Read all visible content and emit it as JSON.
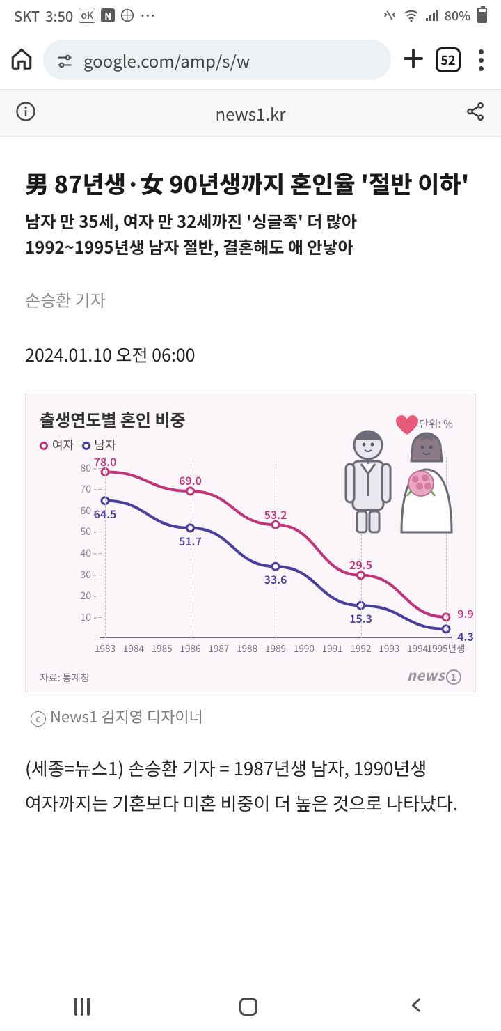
{
  "status_bar": {
    "carrier": "SKT",
    "time": "3:50",
    "ok_badge": "oK",
    "battery_text": "80%"
  },
  "chrome": {
    "url_display": "google.com/amp/s/w",
    "tab_count": "52"
  },
  "amp": {
    "site": "news1.kr"
  },
  "article": {
    "headline": "男 87년생·女 90년생까지 혼인율 '절반 이하'",
    "subhead": "남자 만 35세, 여자 만 32세까진 '싱글족' 더 많아\n1992~1995년생 남자 절반, 결혼해도 애 안낳아",
    "byline": "손승환 기자",
    "pubdate": "2024.01.10 오전 06:00",
    "caption": "News1 김지영 디자이너",
    "body": "(세종=뉴스1) 손승환 기자 = 1987년생 남자, 1990년생 여자까지는 기혼보다 미혼 비중이 더 높은 것으로 나타났다."
  },
  "chart": {
    "type": "line",
    "title": "출생연도별 혼인 비중",
    "unit_label": "단위: %",
    "legend": {
      "female": "여자",
      "male": "남자"
    },
    "colors": {
      "female": "#c2357a",
      "male": "#4a3f9e",
      "background": "#faf6f9",
      "grid": "#c1bcc6",
      "axis": "#6a6472",
      "tick_text": "#8a8490"
    },
    "y": {
      "min": 0,
      "max": 85,
      "ticks": [
        10,
        20,
        30,
        40,
        50,
        60,
        70,
        80
      ]
    },
    "x_labels": [
      "1983",
      "1984",
      "1985",
      "1986",
      "1987",
      "1988",
      "1989",
      "1990",
      "1991",
      "1992",
      "1993",
      "1994",
      "1995년생"
    ],
    "grid_years": [
      1983,
      1986,
      1989,
      1992,
      1995
    ],
    "series": {
      "female": [
        {
          "year": 1983,
          "value": 78.0,
          "label": "78.0",
          "label_dy": -16
        },
        {
          "year": 1986,
          "value": 69.0,
          "label": "69.0",
          "label_dy": -16
        },
        {
          "year": 1989,
          "value": 53.2,
          "label": "53.2",
          "label_dy": -16
        },
        {
          "year": 1992,
          "value": 29.5,
          "label": "29.5",
          "label_dy": -16
        },
        {
          "year": 1995,
          "value": 9.9,
          "label": "9.9",
          "label_dx": 28,
          "label_dy": -6
        }
      ],
      "male": [
        {
          "year": 1983,
          "value": 64.5,
          "label": "64.5",
          "label_dy": 18
        },
        {
          "year": 1986,
          "value": 51.7,
          "label": "51.7",
          "label_dy": 18
        },
        {
          "year": 1989,
          "value": 33.6,
          "label": "33.6",
          "label_dy": 18
        },
        {
          "year": 1992,
          "value": 15.3,
          "label": "15.3",
          "label_dy": 18
        },
        {
          "year": 1995,
          "value": 4.3,
          "label": "4.3",
          "label_dx": 28,
          "label_dy": 10
        }
      ]
    },
    "line_width": 4,
    "marker_radius": 5,
    "source": "자료: 통계청",
    "brand": "news"
  }
}
